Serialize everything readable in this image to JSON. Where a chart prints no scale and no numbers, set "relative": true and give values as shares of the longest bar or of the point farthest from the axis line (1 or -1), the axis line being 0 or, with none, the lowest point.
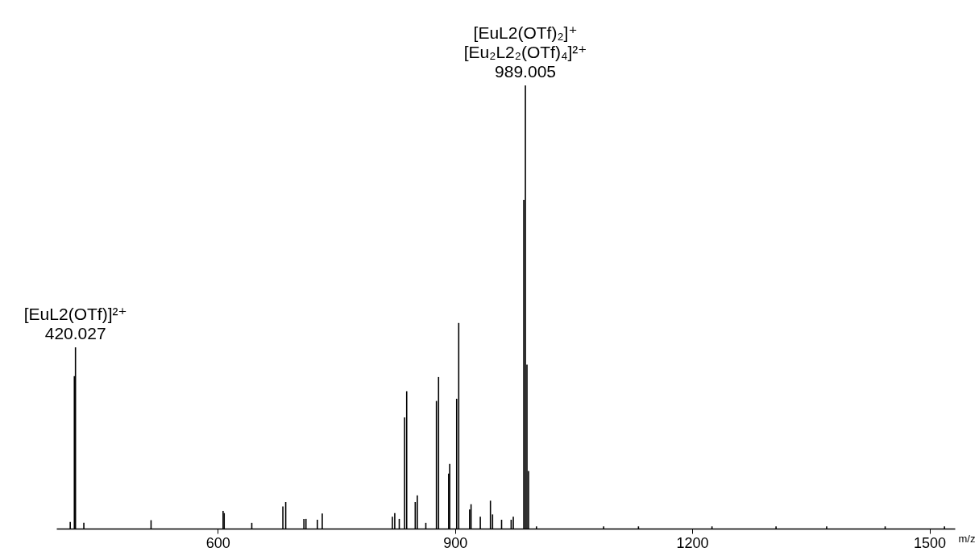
{
  "chart_data": {
    "type": "bar",
    "relative": true,
    "xlabel": "m/z",
    "x": [
      413.4,
      418.6,
      420.027,
      430.6,
      515.6,
      606.7,
      608.1,
      643.0,
      682.3,
      685.9,
      708.9,
      711.5,
      725.9,
      732.1,
      820.8,
      823.8,
      829.5,
      836.2,
      838.9,
      849.7,
      852.3,
      863.1,
      876.5,
      879.2,
      892.0,
      893.3,
      902.1,
      904.7,
      918.5,
      920.3,
      932.0,
      944.8,
      947.5,
      958.9,
      971.0,
      973.7,
      987.0,
      989.005,
      991.0,
      993.0,
      1003,
      1088,
      1132,
      1225,
      1306,
      1370,
      1444,
      1519
    ],
    "values": [
      0.015,
      0.344,
      0.409,
      0.013,
      0.019,
      0.04,
      0.035,
      0.013,
      0.05,
      0.06,
      0.022,
      0.022,
      0.02,
      0.034,
      0.027,
      0.035,
      0.022,
      0.251,
      0.31,
      0.06,
      0.075,
      0.013,
      0.288,
      0.342,
      0.124,
      0.146,
      0.293,
      0.464,
      0.043,
      0.055,
      0.027,
      0.063,
      0.032,
      0.02,
      0.02,
      0.027,
      0.742,
      1.0,
      0.37,
      0.13,
      0.005,
      0.005,
      0.005,
      0.005,
      0.005,
      0.005,
      0.005,
      0.005
    ],
    "color": "#000000",
    "xlim": [
      401,
      1527
    ],
    "xticks": [
      600,
      900,
      1200,
      1500
    ],
    "annotations": [
      {
        "text": "[EuL2(OTf)]²⁺\n420.027",
        "x": 420.027,
        "y": 0.409
      },
      {
        "text": "[EuL2(OTf)₂]⁺\n[Eu₂L2₂(OTf)₄]²⁺\n989.005",
        "x": 989.005,
        "y": 1.0
      }
    ]
  }
}
